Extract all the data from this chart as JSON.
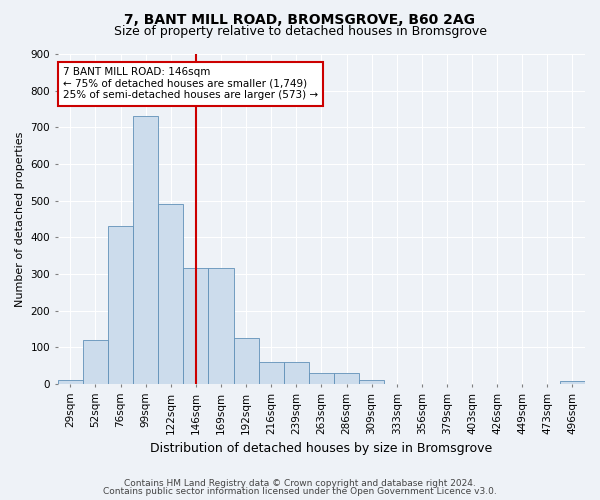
{
  "title1": "7, BANT MILL ROAD, BROMSGROVE, B60 2AG",
  "title2": "Size of property relative to detached houses in Bromsgrove",
  "xlabel": "Distribution of detached houses by size in Bromsgrove",
  "ylabel": "Number of detached properties",
  "bar_labels": [
    "29sqm",
    "52sqm",
    "76sqm",
    "99sqm",
    "122sqm",
    "146sqm",
    "169sqm",
    "192sqm",
    "216sqm",
    "239sqm",
    "263sqm",
    "286sqm",
    "309sqm",
    "333sqm",
    "356sqm",
    "379sqm",
    "403sqm",
    "426sqm",
    "449sqm",
    "473sqm",
    "496sqm"
  ],
  "bar_values": [
    10,
    120,
    430,
    730,
    490,
    315,
    315,
    125,
    60,
    60,
    30,
    30,
    10,
    0,
    0,
    0,
    0,
    0,
    0,
    0,
    8
  ],
  "bar_color": "#ccdcec",
  "bar_edgecolor": "#6090b8",
  "vline_index": 5,
  "vline_color": "#cc0000",
  "ylim": [
    0,
    900
  ],
  "yticks": [
    0,
    100,
    200,
    300,
    400,
    500,
    600,
    700,
    800,
    900
  ],
  "annotation_text": "7 BANT MILL ROAD: 146sqm\n← 75% of detached houses are smaller (1,749)\n25% of semi-detached houses are larger (573) →",
  "annotation_box_facecolor": "white",
  "annotation_box_edgecolor": "#cc0000",
  "footer1": "Contains HM Land Registry data © Crown copyright and database right 2024.",
  "footer2": "Contains public sector information licensed under the Open Government Licence v3.0.",
  "background_color": "#eef2f7",
  "grid_color": "white",
  "title1_fontsize": 10,
  "title2_fontsize": 9,
  "xlabel_fontsize": 9,
  "ylabel_fontsize": 8,
  "tick_fontsize": 7.5,
  "footer_fontsize": 6.5,
  "annotation_fontsize": 7.5
}
